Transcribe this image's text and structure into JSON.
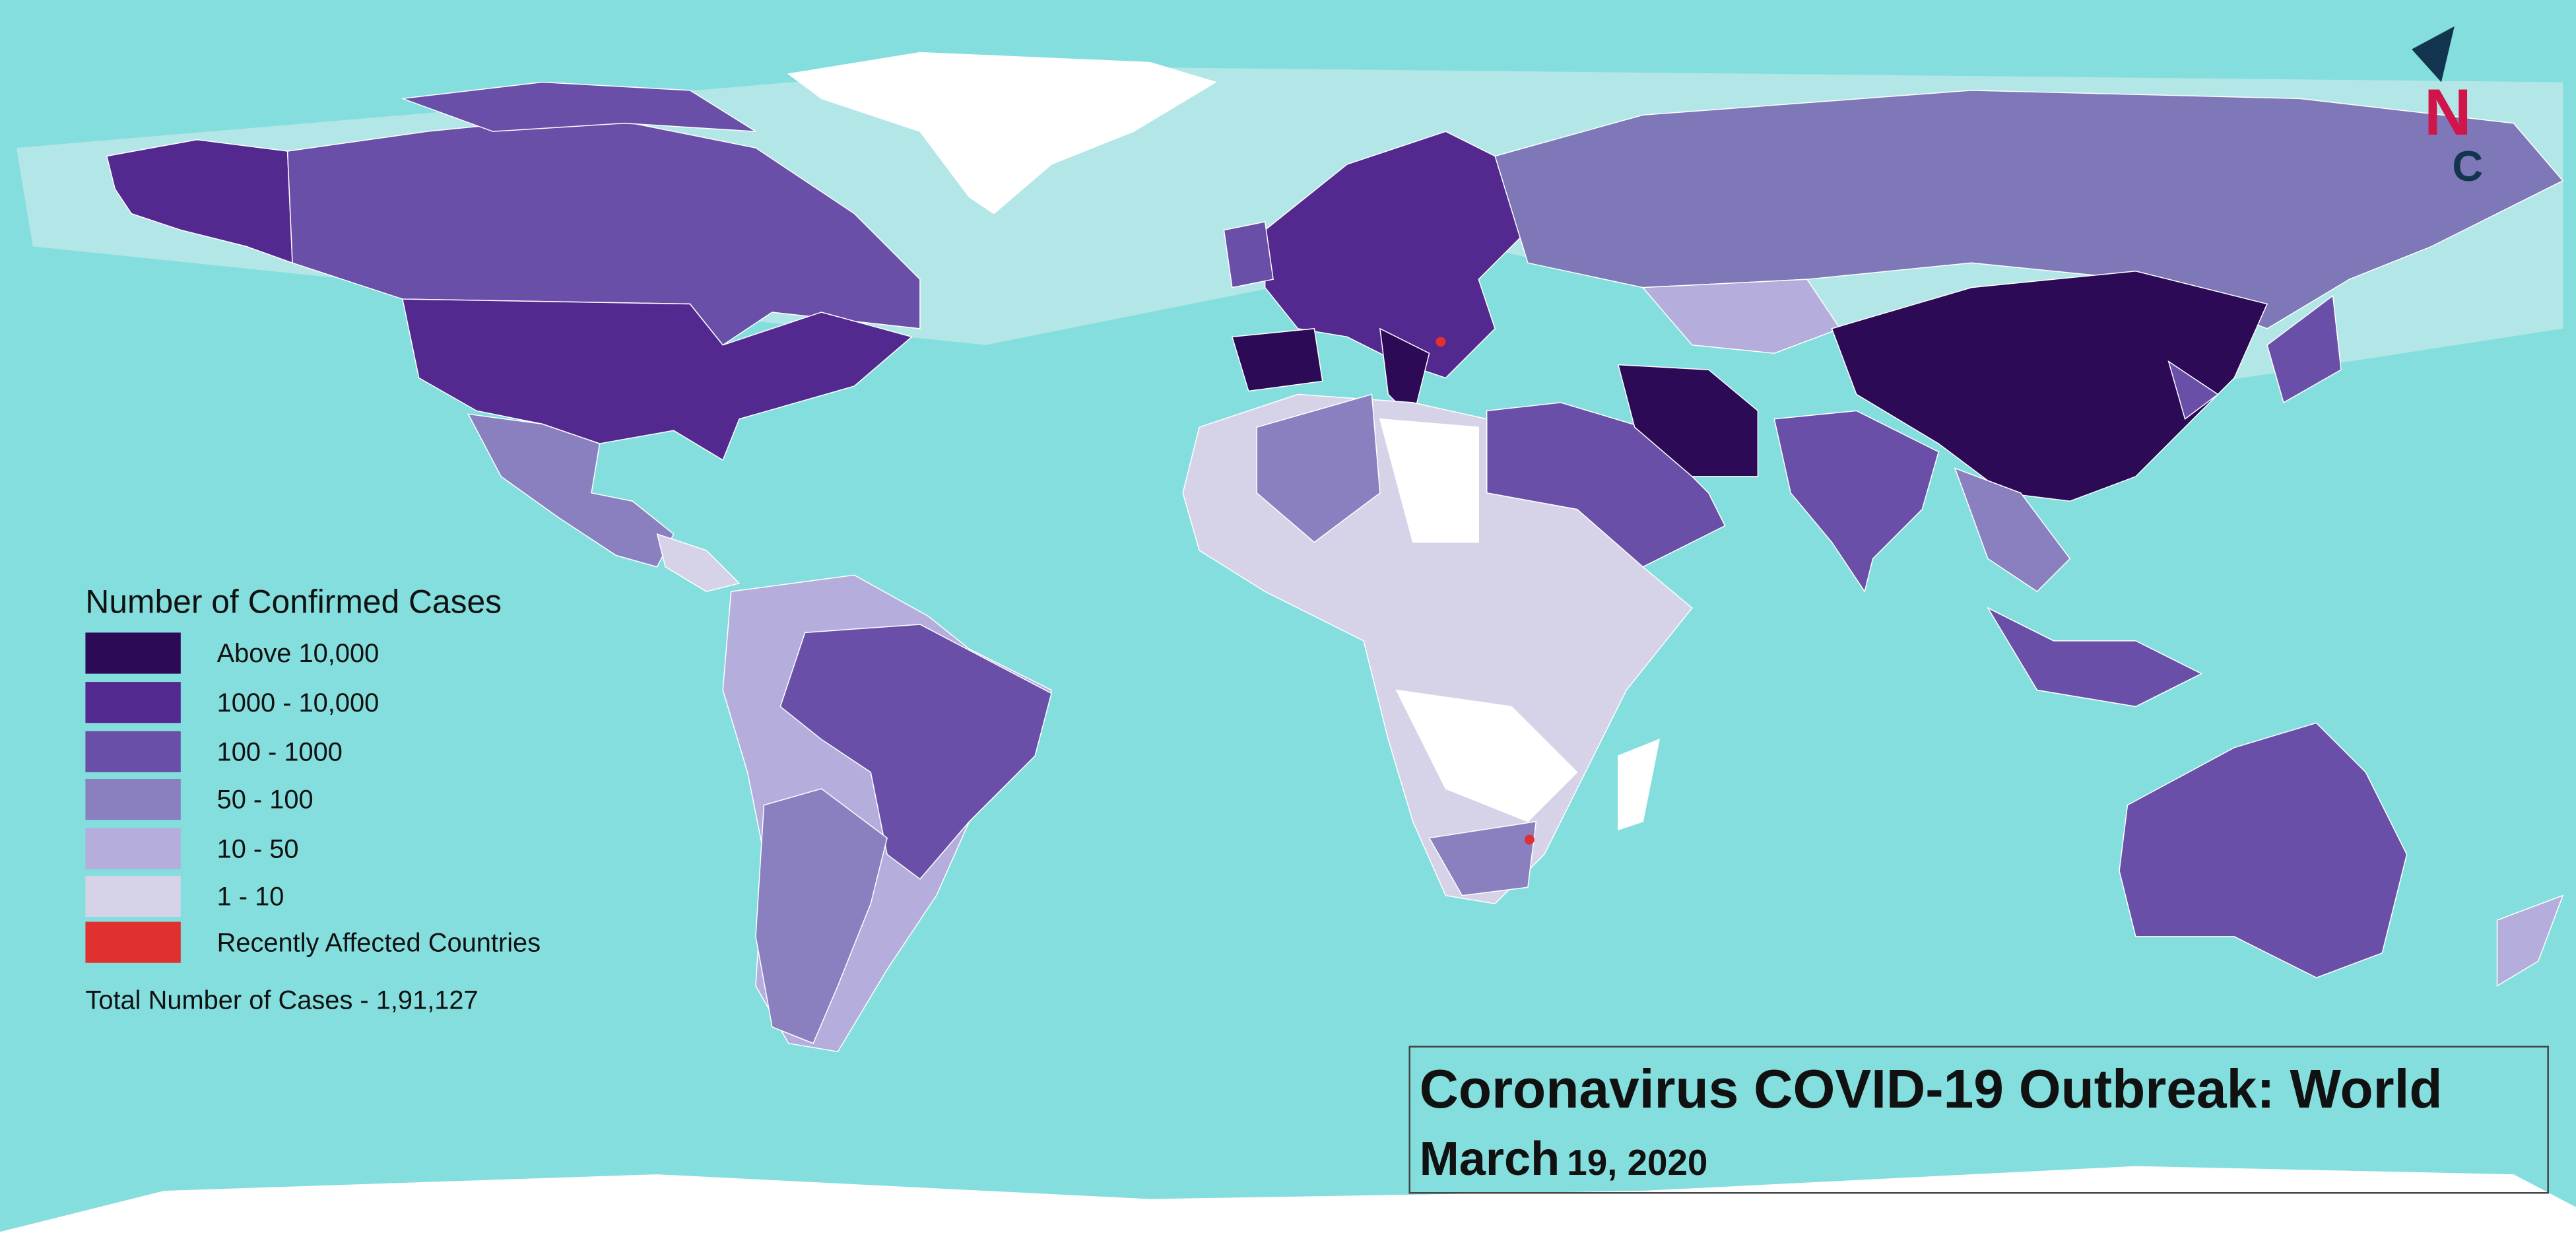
{
  "legend": {
    "title": "Number of Confirmed Cases",
    "items": [
      {
        "label": "Above 10,000",
        "color": "#2d0a55"
      },
      {
        "label": "1000 - 10,000",
        "color": "#54298f"
      },
      {
        "label": "100 - 1000",
        "color": "#6a4fa8"
      },
      {
        "label": "50 - 100",
        "color": "#8a80c0"
      },
      {
        "label": "10 - 50",
        "color": "#b5aedc"
      },
      {
        "label": "1 - 10",
        "color": "#d6d3e8"
      },
      {
        "label": "Recently Affected Countries",
        "color": "#e03030"
      }
    ],
    "total": "Total Number of Cases - 1,91,127"
  },
  "header": {
    "title": "Coronavirus COVID-19 Outbreak: World",
    "date_month": "March",
    "date_rest": "19, 2020"
  },
  "logo": {
    "line1": "N",
    "line2": "C"
  }
}
